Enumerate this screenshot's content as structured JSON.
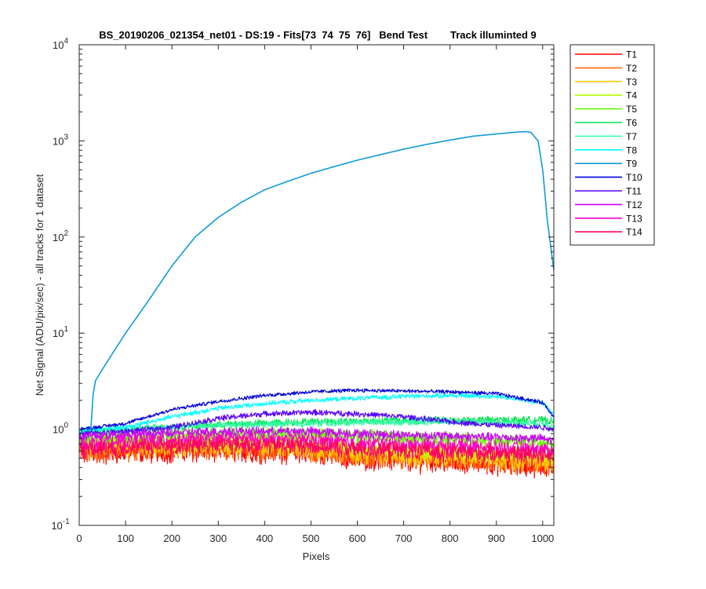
{
  "chart_data": {
    "type": "line",
    "title": "BS_20190206_021354_net01 - DS:19 - Fits[73  74  75  76]   Bend Test        Track illuminted 9",
    "xlabel": "Pixels",
    "ylabel": "Net Signal (ADU/pix/sec) - all tracks for 1 dataset",
    "xlim": [
      0,
      1024
    ],
    "ylim": [
      0.1,
      10000
    ],
    "yscale": "log",
    "grid": false,
    "legend_position": "outside-top-right",
    "x_ticks": [
      0,
      100,
      200,
      300,
      400,
      500,
      600,
      700,
      800,
      900,
      1000
    ],
    "x_tick_labels": [
      "0",
      "100",
      "200",
      "300",
      "400",
      "500",
      "600",
      "700",
      "800",
      "900",
      "1000"
    ],
    "y_ticks": [
      0.1,
      1,
      10,
      100,
      1000,
      10000
    ],
    "y_tick_labels": [
      {
        "base": "10",
        "exp": "-1"
      },
      {
        "base": "10",
        "exp": "0"
      },
      {
        "base": "10",
        "exp": "1"
      },
      {
        "base": "10",
        "exp": "2"
      },
      {
        "base": "10",
        "exp": "3"
      },
      {
        "base": "10",
        "exp": "4"
      }
    ],
    "series": [
      {
        "name": "T1",
        "color": "#ff0000",
        "noise": 0.22,
        "x": [
          0,
          100,
          300,
          500,
          600,
          800,
          1000,
          1024
        ],
        "y": [
          0.55,
          0.58,
          0.6,
          0.58,
          0.5,
          0.46,
          0.42,
          0.4
        ]
      },
      {
        "name": "T2",
        "color": "#ff6600",
        "noise": 0.22,
        "x": [
          0,
          100,
          300,
          500,
          600,
          800,
          1000,
          1024
        ],
        "y": [
          0.6,
          0.62,
          0.63,
          0.6,
          0.53,
          0.49,
          0.45,
          0.43
        ]
      },
      {
        "name": "T3",
        "color": "#ffcc00",
        "noise": 0.2,
        "x": [
          0,
          100,
          300,
          500,
          600,
          800,
          1000,
          1024
        ],
        "y": [
          0.65,
          0.66,
          0.67,
          0.64,
          0.56,
          0.52,
          0.48,
          0.46
        ]
      },
      {
        "name": "T4",
        "color": "#b3ff00",
        "noise": 0.18,
        "x": [
          0,
          100,
          300,
          500,
          600,
          800,
          1000,
          1024
        ],
        "y": [
          0.72,
          0.74,
          0.76,
          0.73,
          0.64,
          0.6,
          0.55,
          0.53
        ]
      },
      {
        "name": "T5",
        "color": "#66ff00",
        "noise": 0.15,
        "x": [
          0,
          100,
          300,
          500,
          600,
          800,
          1000,
          1024
        ],
        "y": [
          0.8,
          0.85,
          0.9,
          0.9,
          0.85,
          0.8,
          0.75,
          0.72
        ]
      },
      {
        "name": "T6",
        "color": "#00e64d",
        "noise": 0.08,
        "x": [
          0,
          100,
          300,
          500,
          600,
          800,
          1000,
          1024
        ],
        "y": [
          0.95,
          1.0,
          1.12,
          1.2,
          1.22,
          1.25,
          1.25,
          1.2
        ]
      },
      {
        "name": "T7",
        "color": "#33ffa8",
        "noise": 0.07,
        "x": [
          0,
          100,
          300,
          500,
          600,
          800,
          1000,
          1024
        ],
        "y": [
          0.95,
          1.0,
          1.1,
          1.15,
          1.18,
          1.2,
          1.15,
          1.1
        ]
      },
      {
        "name": "T8",
        "color": "#00ffff",
        "noise": 0.05,
        "x": [
          0,
          100,
          200,
          300,
          400,
          500,
          600,
          700,
          800,
          900,
          1000,
          1024
        ],
        "y": [
          0.98,
          1.05,
          1.35,
          1.65,
          1.85,
          2.0,
          2.1,
          2.2,
          2.25,
          2.2,
          1.9,
          1.4
        ]
      },
      {
        "name": "T9",
        "color": "#0f9bdc",
        "noise": 0.0,
        "x": [
          0,
          25,
          30,
          35,
          50,
          75,
          100,
          150,
          200,
          250,
          300,
          350,
          400,
          450,
          500,
          550,
          600,
          650,
          700,
          750,
          800,
          850,
          900,
          950,
          965,
          975,
          990,
          1000,
          1010,
          1024
        ],
        "y": [
          0.9,
          1.0,
          2.3,
          3.2,
          4.2,
          6.5,
          10.0,
          22.0,
          50.0,
          100.0,
          160.0,
          230.0,
          310.0,
          380.0,
          460.0,
          540.0,
          630.0,
          720.0,
          820.0,
          920.0,
          1020.0,
          1120.0,
          1180.0,
          1240.0,
          1250.0,
          1220.0,
          1000.0,
          500.0,
          150.0,
          45.0
        ]
      },
      {
        "name": "T10",
        "color": "#0000d9",
        "noise": 0.04,
        "x": [
          0,
          100,
          200,
          300,
          400,
          500,
          600,
          700,
          800,
          900,
          1000,
          1024
        ],
        "y": [
          1.0,
          1.15,
          1.6,
          1.95,
          2.25,
          2.45,
          2.55,
          2.5,
          2.45,
          2.35,
          1.9,
          1.35
        ]
      },
      {
        "name": "T11",
        "color": "#5a00ff",
        "noise": 0.06,
        "x": [
          0,
          100,
          200,
          300,
          400,
          500,
          600,
          700,
          800,
          900,
          1000,
          1024
        ],
        "y": [
          0.9,
          0.95,
          1.05,
          1.3,
          1.45,
          1.5,
          1.45,
          1.35,
          1.2,
          1.1,
          1.05,
          1.0
        ]
      },
      {
        "name": "T12",
        "color": "#cc00ff",
        "noise": 0.1,
        "x": [
          0,
          100,
          300,
          500,
          600,
          800,
          1000,
          1024
        ],
        "y": [
          0.85,
          0.88,
          0.95,
          0.95,
          0.9,
          0.85,
          0.8,
          0.75
        ]
      },
      {
        "name": "T13",
        "color": "#ff00cc",
        "noise": 0.15,
        "x": [
          0,
          100,
          300,
          500,
          600,
          800,
          1000,
          1024
        ],
        "y": [
          0.7,
          0.75,
          0.8,
          0.78,
          0.72,
          0.68,
          0.62,
          0.6
        ]
      },
      {
        "name": "T14",
        "color": "#ff0066",
        "noise": 0.18,
        "x": [
          0,
          100,
          300,
          500,
          600,
          800,
          1000,
          1024
        ],
        "y": [
          0.62,
          0.66,
          0.7,
          0.68,
          0.62,
          0.58,
          0.55,
          0.53
        ]
      }
    ]
  }
}
